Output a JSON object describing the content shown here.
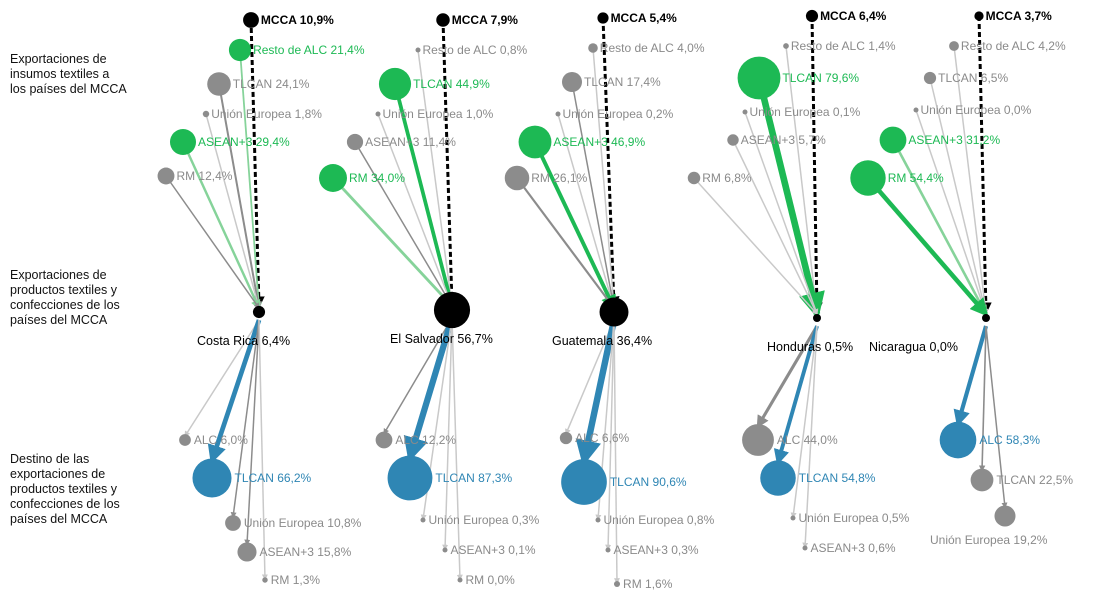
{
  "row_labels": {
    "inputs": "Exportaciones de\ninsumos textiles a\nlos países del MCCA",
    "products": "Exportaciones de\nproductos textiles y\nconfecciones de los\npaíses del MCCA",
    "destinations": "Destino de las\nexportaciones de\nproductos textiles y\nconfecciones de los\npaíses del MCCA"
  },
  "colors": {
    "black": "#000000",
    "green_bright": "#1db954",
    "green_light": "#86d39a",
    "gray": "#8c8c8c",
    "gray_light": "#c9c9c9",
    "blue": "#2f86b4",
    "label_gray": "#8a8a8a"
  },
  "countries": [
    {
      "name": "Costa Rica",
      "label": "Costa Rica 6,4%",
      "value": 6.4,
      "origins": [
        {
          "label": "MCCA 10,9%",
          "value": 10.9,
          "color": "black"
        },
        {
          "label": "Resto de ALC 21,4%",
          "value": 21.4,
          "color": "green"
        },
        {
          "label": "TLCAN 24,1%",
          "value": 24.1,
          "color": "gray"
        },
        {
          "label": "Unión Europea 1,8%",
          "value": 1.8,
          "color": "gray"
        },
        {
          "label": "ASEAN+3 29,4%",
          "value": 29.4,
          "color": "green"
        },
        {
          "label": "RM 12,4%",
          "value": 12.4,
          "color": "gray"
        }
      ],
      "destinations": [
        {
          "label": "ALC 6,0%",
          "value": 6.0,
          "color": "gray"
        },
        {
          "label": "TLCAN 66,2%",
          "value": 66.2,
          "color": "blue"
        },
        {
          "label": "Unión Europea 10,8%",
          "value": 10.8,
          "color": "gray"
        },
        {
          "label": "ASEAN+3 15,8%",
          "value": 15.8,
          "color": "gray"
        },
        {
          "label": "RM 1,3%",
          "value": 1.3,
          "color": "gray"
        }
      ]
    },
    {
      "name": "El Salvador",
      "label": "El Salvador 56,7%",
      "value": 56.7,
      "origins": [
        {
          "label": "MCCA 7,9%",
          "value": 7.9,
          "color": "black"
        },
        {
          "label": "Resto de ALC 0,8%",
          "value": 0.8,
          "color": "gray"
        },
        {
          "label": "TLCAN 44,9%",
          "value": 44.9,
          "color": "green"
        },
        {
          "label": "Unión Europea 1,0%",
          "value": 1.0,
          "color": "gray"
        },
        {
          "label": "ASEAN+3 11,4%",
          "value": 11.4,
          "color": "gray"
        },
        {
          "label": "RM 34,0%",
          "value": 34.0,
          "color": "green"
        }
      ],
      "destinations": [
        {
          "label": "ALC 12,2%",
          "value": 12.2,
          "color": "gray"
        },
        {
          "label": "TLCAN 87,3%",
          "value": 87.3,
          "color": "blue"
        },
        {
          "label": "Unión Europea 0,3%",
          "value": 0.3,
          "color": "gray"
        },
        {
          "label": "ASEAN+3 0,1%",
          "value": 0.1,
          "color": "gray"
        },
        {
          "label": "RM 0,0%",
          "value": 0.0,
          "color": "gray"
        }
      ]
    },
    {
      "name": "Guatemala",
      "label": "Guatemala 36,4%",
      "value": 36.4,
      "origins": [
        {
          "label": "MCCA 5,4%",
          "value": 5.4,
          "color": "black"
        },
        {
          "label": "Resto de ALC 4,0%",
          "value": 4.0,
          "color": "gray"
        },
        {
          "label": "TLCAN 17,4%",
          "value": 17.4,
          "color": "gray"
        },
        {
          "label": "Unión Europea 0,2%",
          "value": 0.2,
          "color": "gray"
        },
        {
          "label": "ASEAN+3 46,9%",
          "value": 46.9,
          "color": "green"
        },
        {
          "label": "RM 26,1%",
          "value": 26.1,
          "color": "gray"
        }
      ],
      "destinations": [
        {
          "label": "ALC 6,6%",
          "value": 6.6,
          "color": "gray"
        },
        {
          "label": "TLCAN 90,6%",
          "value": 90.6,
          "color": "blue"
        },
        {
          "label": "Unión Europea 0,8%",
          "value": 0.8,
          "color": "gray"
        },
        {
          "label": "ASEAN+3 0,3%",
          "value": 0.3,
          "color": "gray"
        },
        {
          "label": "RM 1,6%",
          "value": 1.6,
          "color": "gray"
        }
      ]
    },
    {
      "name": "Honduras",
      "label": "Honduras 0,5%",
      "value": 0.5,
      "origins": [
        {
          "label": "MCCA 6,4%",
          "value": 6.4,
          "color": "black"
        },
        {
          "label": "Resto de ALC 1,4%",
          "value": 1.4,
          "color": "gray"
        },
        {
          "label": "TLCAN 79,6%",
          "value": 79.6,
          "color": "green"
        },
        {
          "label": "Unión Europea 0,1%",
          "value": 0.1,
          "color": "gray"
        },
        {
          "label": "ASEAN+3 5,7%",
          "value": 5.7,
          "color": "gray"
        },
        {
          "label": "RM 6,8%",
          "value": 6.8,
          "color": "gray"
        }
      ],
      "destinations": [
        {
          "label": "ALC 44,0%",
          "value": 44.0,
          "color": "gray"
        },
        {
          "label": "TLCAN 54,8%",
          "value": 54.8,
          "color": "blue"
        },
        {
          "label": "Unión Europea 0,5%",
          "value": 0.5,
          "color": "gray"
        },
        {
          "label": "ASEAN+3 0,6%",
          "value": 0.6,
          "color": "gray"
        }
      ]
    },
    {
      "name": "Nicaragua",
      "label": "Nicaragua 0,0%",
      "value": 0.0,
      "origins": [
        {
          "label": "MCCA 3,7%",
          "value": 3.7,
          "color": "black"
        },
        {
          "label": "Resto de ALC 4,2%",
          "value": 4.2,
          "color": "gray"
        },
        {
          "label": "TLCAN 6,5%",
          "value": 6.5,
          "color": "gray"
        },
        {
          "label": "Unión Europea 0,0%",
          "value": 0.0,
          "color": "gray"
        },
        {
          "label": "ASEAN+3 31,2%",
          "value": 31.2,
          "color": "green"
        },
        {
          "label": "RM 54,4%",
          "value": 54.4,
          "color": "green"
        }
      ],
      "destinations": [
        {
          "label": "ALC 58,3%",
          "value": 58.3,
          "color": "blue"
        },
        {
          "label": "TLCAN 22,5%",
          "value": 22.5,
          "color": "gray"
        },
        {
          "label": "Unión Europea 19,2%",
          "value": 19.2,
          "color": "gray"
        }
      ]
    }
  ]
}
